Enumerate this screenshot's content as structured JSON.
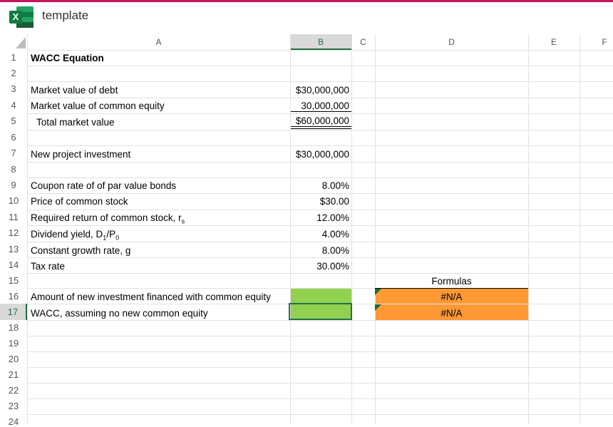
{
  "app": {
    "title": "template",
    "icon": "excel-icon"
  },
  "columns": [
    "A",
    "B",
    "C",
    "D",
    "E",
    "F"
  ],
  "selected_column": "B",
  "selected_row": "17",
  "rows": [
    "1",
    "2",
    "3",
    "4",
    "5",
    "6",
    "7",
    "8",
    "9",
    "10",
    "11",
    "12",
    "13",
    "14",
    "15",
    "16",
    "17",
    "18",
    "19",
    "20",
    "21",
    "22",
    "23",
    "24"
  ],
  "cells": {
    "a1": "WACC Equation",
    "a3": "Market value of debt",
    "b3": "$30,000,000",
    "a4": "Market value of common equity",
    "b4": "30,000,000",
    "a5": "Total market value",
    "b5": "$60,000,000",
    "a7": "New project investment",
    "b7": "$30,000,000",
    "a9": "Coupon rate of of par value bonds",
    "b9": "8.00%",
    "a10": "Price of common stock",
    "b10": "$30.00",
    "a11_prefix": "Required return of common stock, r",
    "a11_sub": "s",
    "b11": "12.00%",
    "a12_prefix": "Dividend yield, D",
    "a12_sub1": "1",
    "a12_mid": "/P",
    "a12_sub2": "0",
    "b12": "4.00%",
    "a13": "Constant growth rate, g",
    "b13": "8.00%",
    "a14": "Tax rate",
    "b14": "30.00%",
    "d15": "Formulas",
    "a16": "Amount of new investment financed with common equity",
    "d16": "#N/A",
    "a17": "WACC, assuming no new common equity",
    "d17": "#N/A"
  },
  "colors": {
    "input_green": "#92d050",
    "formula_orange": "#ff9933",
    "selection_green": "#217346",
    "header_selected_bg": "#d9d9d9",
    "top_accent": "#c2185b"
  }
}
